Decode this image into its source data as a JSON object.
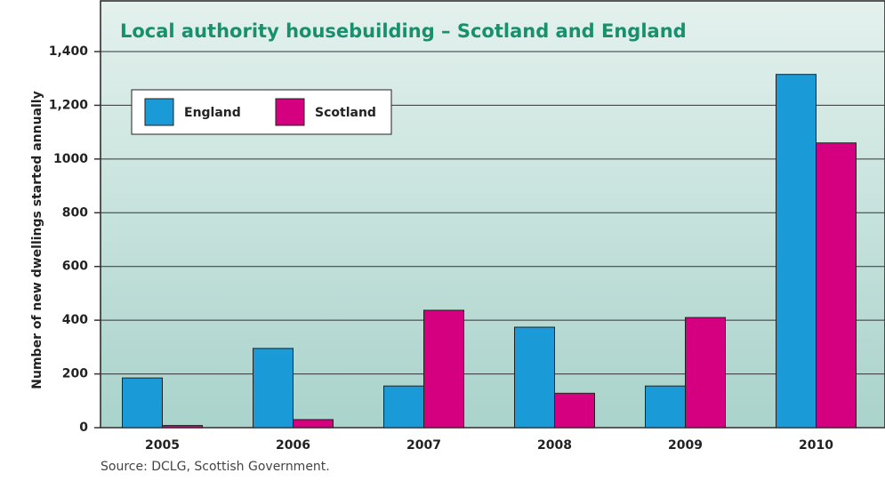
{
  "chart_data": {
    "type": "bar",
    "title": "Local authority housebuilding – Scotland and England",
    "ylabel": "Number of new dwellings started annually",
    "source": "Source: DCLG, Scottish Government.",
    "categories": [
      "2005",
      "2006",
      "2007",
      "2008",
      "2009",
      "2010"
    ],
    "series": [
      {
        "name": "England",
        "color": "#1a9ad6",
        "values": [
          185,
          295,
          155,
          374,
          155,
          1315
        ]
      },
      {
        "name": "Scotland",
        "color": "#d5007f",
        "values": [
          8,
          30,
          437,
          128,
          410,
          1060
        ]
      }
    ],
    "ylim": [
      0,
      1400
    ],
    "yticks": [
      0,
      200,
      400,
      600,
      800,
      1000,
      {
        "value": 1200,
        "label": "1,200"
      },
      {
        "value": 1400,
        "label": "1,400"
      }
    ],
    "grid": true,
    "legend": "top-left"
  }
}
